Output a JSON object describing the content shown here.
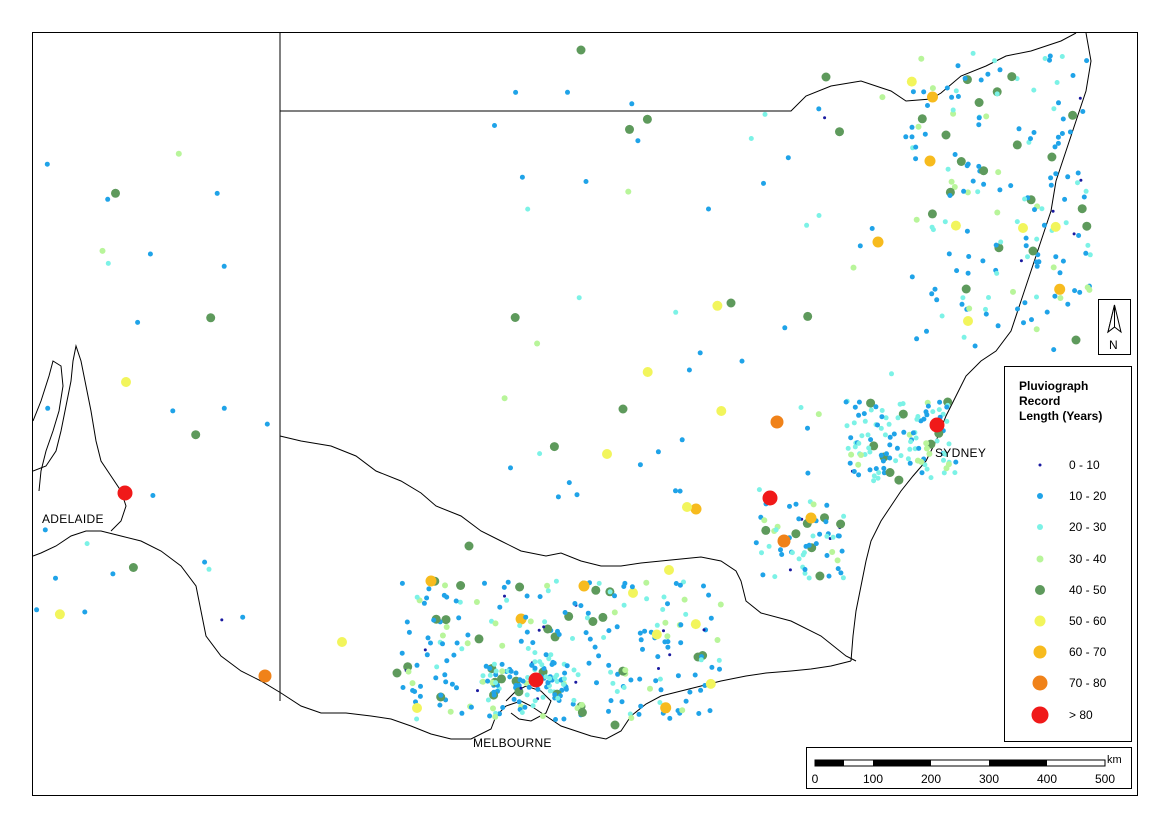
{
  "labels": {
    "adelaide": "ADELAIDE",
    "sydney": "SYDNEY",
    "melbourne": "MELBOURNE",
    "north": "N"
  },
  "legend": {
    "title_lines": [
      "Pluviograph",
      "Record",
      "Length (Years)"
    ],
    "classes": [
      {
        "label": "0 - 10",
        "color": "#1a1aa0"
      },
      {
        "label": "10 - 20",
        "color": "#1fa3e8"
      },
      {
        "label": "20 - 30",
        "color": "#7cf2e6"
      },
      {
        "label": "30 - 40",
        "color": "#b8f59a"
      },
      {
        "label": "40 - 50",
        "color": "#5e9a5c"
      },
      {
        "label": "50 - 60",
        "color": "#f2f55c"
      },
      {
        "label": "60 - 70",
        "color": "#f7bb1e"
      },
      {
        "label": "70 - 80",
        "color": "#f08219"
      },
      {
        "label": "> 80",
        "color": "#f01919"
      }
    ]
  },
  "scale": {
    "unit": "km",
    "ticks": [
      "0",
      "100",
      "200",
      "300",
      "400",
      "500"
    ]
  },
  "colors": {
    "border": "#000000",
    "background": "#ffffff"
  }
}
